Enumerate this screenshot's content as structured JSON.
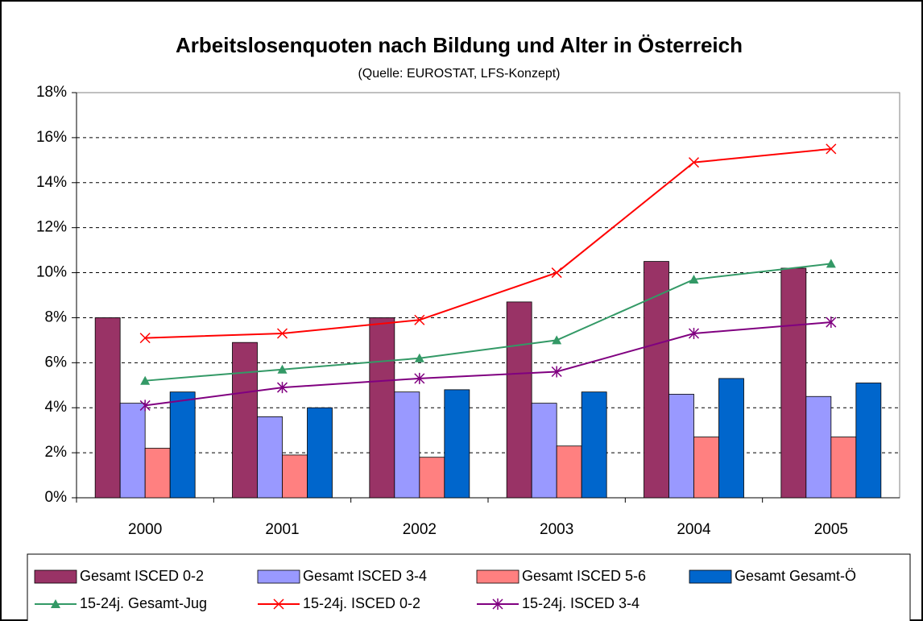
{
  "chart_data": {
    "type": "bar",
    "title": "Arbeitslosenquoten nach Bildung und Alter in Österreich",
    "subtitle": "(Quelle: EUROSTAT, LFS-Konzept)",
    "categories": [
      "2000",
      "2001",
      "2002",
      "2003",
      "2004",
      "2005"
    ],
    "series": [
      {
        "name": "Gesamt ISCED 0-2",
        "type": "bar",
        "color": "#993366",
        "values": [
          8.0,
          6.9,
          8.0,
          8.7,
          10.5,
          10.2
        ]
      },
      {
        "name": "Gesamt ISCED 3-4",
        "type": "bar",
        "color": "#9999ff",
        "values": [
          4.2,
          3.6,
          4.7,
          4.2,
          4.6,
          4.5
        ]
      },
      {
        "name": "Gesamt ISCED 5-6",
        "type": "bar",
        "color": "#ff8080",
        "values": [
          2.2,
          1.9,
          1.8,
          2.3,
          2.7,
          2.7
        ]
      },
      {
        "name": "Gesamt Gesamt-Ö",
        "type": "bar",
        "color": "#0066cc",
        "values": [
          4.7,
          4.0,
          4.8,
          4.7,
          5.3,
          5.1
        ]
      },
      {
        "name": "15-24j. Gesamt-Jug",
        "type": "line",
        "marker": "triangle",
        "color": "#339966",
        "values": [
          5.2,
          5.7,
          6.2,
          7.0,
          9.7,
          10.4
        ]
      },
      {
        "name": "15-24j. ISCED 0-2",
        "type": "line",
        "marker": "x",
        "color": "#ff0000",
        "values": [
          7.1,
          7.3,
          7.9,
          10.0,
          14.9,
          15.5
        ]
      },
      {
        "name": "15-24j. ISCED 3-4",
        "type": "line",
        "marker": "star",
        "color": "#800080",
        "values": [
          4.1,
          4.9,
          5.3,
          5.6,
          7.3,
          7.8
        ]
      }
    ],
    "ylim": [
      0,
      18
    ],
    "yticks": [
      {
        "value": 0,
        "label": "0%"
      },
      {
        "value": 2,
        "label": "2%"
      },
      {
        "value": 4,
        "label": "4%"
      },
      {
        "value": 6,
        "label": "6%"
      },
      {
        "value": 8,
        "label": "8%"
      },
      {
        "value": 10,
        "label": "10%"
      },
      {
        "value": 12,
        "label": "12%"
      },
      {
        "value": 14,
        "label": "14%"
      },
      {
        "value": 16,
        "label": "16%"
      },
      {
        "value": 18,
        "label": "18%"
      }
    ],
    "grid": true,
    "legend": "bottom"
  }
}
